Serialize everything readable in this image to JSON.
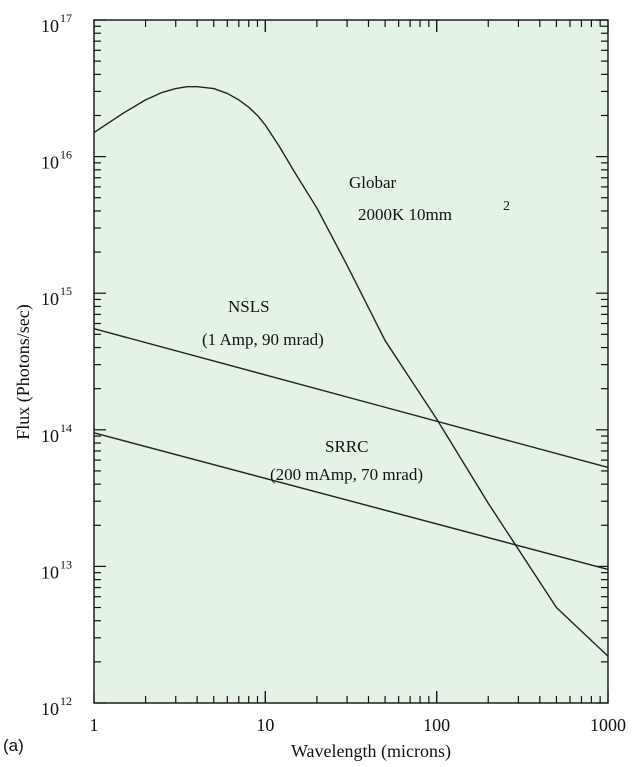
{
  "panel_label": "(a)",
  "chart_data": {
    "type": "line",
    "xlabel": "Wavelength (microns)",
    "ylabel": "Flux (Photons/sec)",
    "xscale": "log",
    "yscale": "log",
    "xlim": [
      1,
      1000
    ],
    "ylim": [
      1000000000000.0,
      1e+17
    ],
    "grid": false,
    "background": "#e5f3e6",
    "line_color": "#222222",
    "x_ticks": [
      {
        "value": 1,
        "label": "1"
      },
      {
        "value": 10,
        "label": "10"
      },
      {
        "value": 100,
        "label": "100"
      },
      {
        "value": 1000,
        "label": "1000"
      }
    ],
    "y_ticks": [
      {
        "value": 1000000000000.0,
        "base": "10",
        "exp": "12"
      },
      {
        "value": 10000000000000.0,
        "base": "10",
        "exp": "13"
      },
      {
        "value": 100000000000000.0,
        "base": "10",
        "exp": "14"
      },
      {
        "value": 1000000000000000.0,
        "base": "10",
        "exp": "15"
      },
      {
        "value": 1e+16,
        "base": "10",
        "exp": "16"
      },
      {
        "value": 1e+17,
        "base": "10",
        "exp": "17"
      }
    ],
    "series": [
      {
        "name": "Globar",
        "x": [
          1,
          1.5,
          2,
          2.5,
          3,
          3.5,
          4,
          5,
          6,
          7,
          8,
          9,
          10,
          12,
          15,
          20,
          30,
          50,
          100,
          200,
          500,
          1000
        ],
        "y": [
          1.5e+16,
          2.1e+16,
          2.6e+16,
          2.95e+16,
          3.15e+16,
          3.25e+16,
          3.25e+16,
          3.15e+16,
          2.9e+16,
          2.6e+16,
          2.3e+16,
          2e+16,
          1.7e+16,
          1.2e+16,
          7500000000000000.0,
          4200000000000000.0,
          1600000000000000.0,
          450000000000000.0,
          120000000000000.0,
          29000000000000.0,
          5000000000000.0,
          2200000000000.0
        ]
      },
      {
        "name": "NSLS",
        "x": [
          1,
          1000
        ],
        "y": [
          550000000000000.0,
          53000000000000.0
        ]
      },
      {
        "name": "SRRC",
        "x": [
          1,
          1000
        ],
        "y": [
          95000000000000.0,
          9500000000000.0
        ]
      }
    ],
    "annotations": [
      {
        "series": "Globar",
        "lines": [
          "Globar",
          "2000K    10mm"
        ],
        "sup": "2"
      },
      {
        "series": "NSLS",
        "lines": [
          "NSLS",
          "(1 Amp, 90 mrad)"
        ]
      },
      {
        "series": "SRRC",
        "lines": [
          "SRRC",
          "(200 mAmp, 70 mrad)"
        ]
      }
    ]
  }
}
